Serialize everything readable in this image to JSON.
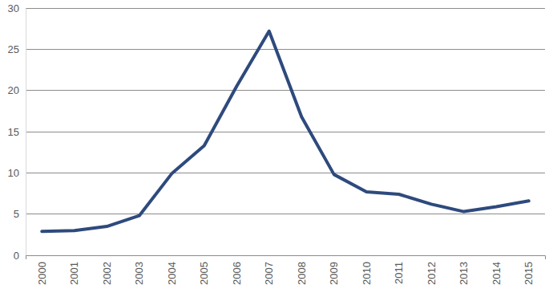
{
  "chart_data": {
    "type": "line",
    "categories": [
      "2000",
      "2001",
      "2002",
      "2003",
      "2004",
      "2005",
      "2006",
      "2007",
      "2008",
      "2009",
      "2010",
      "2011",
      "2012",
      "2013",
      "2014",
      "2015"
    ],
    "values": [
      2.9,
      3.0,
      3.5,
      4.8,
      9.9,
      13.3,
      20.5,
      27.2,
      16.8,
      9.8,
      7.7,
      7.4,
      6.2,
      5.3,
      5.9,
      6.6
    ],
    "color": "#2e4a7d",
    "ylim": [
      0,
      30
    ],
    "yticks": [
      0,
      5,
      10,
      15,
      20,
      25,
      30
    ],
    "grid": true
  }
}
